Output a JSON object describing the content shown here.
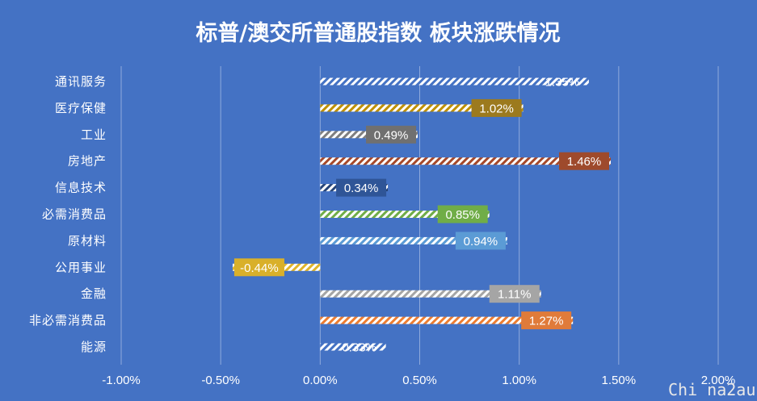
{
  "chart_data": {
    "type": "bar",
    "orientation": "horizontal",
    "title": "标普/澳交所普通股指数 板块涨跌情况",
    "categories": [
      "通讯服务",
      "医疗保健",
      "工业",
      "房地产",
      "信息技术",
      "必需消费品",
      "原材料",
      "公用事业",
      "金融",
      "非必需消费品",
      "能源"
    ],
    "values": [
      1.35,
      1.02,
      0.49,
      1.46,
      0.34,
      0.85,
      0.94,
      -0.44,
      1.11,
      1.27,
      0.33
    ],
    "data_labels": [
      "1.35%",
      "1.02%",
      "0.49%",
      "1.46%",
      "0.34%",
      "0.85%",
      "0.94%",
      "-0.44%",
      "1.11%",
      "1.27%",
      "0.33%"
    ],
    "xlim": [
      -1.0,
      2.0
    ],
    "xticks": [
      -1.0,
      -0.5,
      0.0,
      0.5,
      1.0,
      1.5,
      2.0
    ],
    "xtick_labels": [
      "-1.00%",
      "-0.50%",
      "0.00%",
      "0.50%",
      "1.00%",
      "1.50%",
      "2.00%"
    ],
    "grid": true,
    "bar_pattern": "diagonal-stripes",
    "colors": {
      "background": "#4472C4",
      "grid": "#8FAADC",
      "text": "#FFFFFF",
      "bar_base": "#FFFFFF"
    },
    "series_colors": [
      "#4472C4",
      "#BF9000",
      "#7F7F7F",
      "#A5482A",
      "#264478",
      "#70AD47",
      "#5B9BD5",
      "#E0B42A",
      "#A5A5A5",
      "#ED7D31",
      "#4472C4"
    ],
    "label_box_colors": [
      "none",
      "#9C7A1E",
      "#707070",
      "#9E4A2C",
      "#2F5597",
      "#70AD47",
      "#5B9BD5",
      "#D9B02A",
      "#A5A5A5",
      "#E07B3A",
      "none"
    ]
  },
  "watermark": "Chi na2au"
}
